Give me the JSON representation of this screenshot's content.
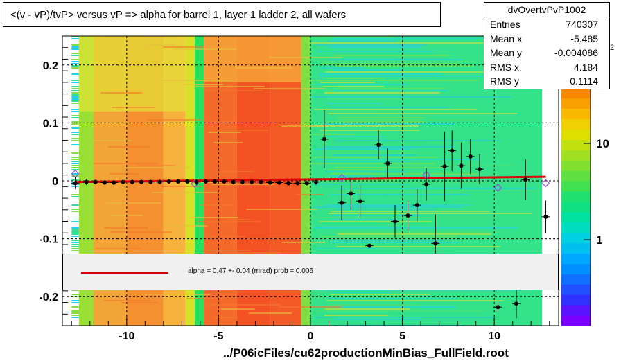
{
  "chart_data": {
    "type": "scatter",
    "title": "<(v - vP)/tvP> versus   vP => alpha for barrel 1, layer 1 ladder 2, all wafers",
    "xlabel": "../P06icFiles/cu62productionMinBias_FullField.root",
    "ylabel": "",
    "xlim": [
      -13.5,
      13.5
    ],
    "ylim": [
      -0.25,
      0.25
    ],
    "x_ticks": [
      -10,
      -5,
      0,
      5,
      10
    ],
    "y_ticks": [
      0.2,
      0.1,
      0,
      -0.1,
      -0.2
    ],
    "x_tick_labels": [
      "-10",
      "-5",
      "0",
      "5",
      "10"
    ],
    "y_tick_labels": [
      "0.2",
      "0.1",
      "0",
      "-0.1",
      "-0.2"
    ],
    "grid": true,
    "color_scale": {
      "type": "log",
      "tick_labels": [
        "1",
        "10"
      ],
      "exponent_label": "2"
    },
    "points": [
      {
        "x": -12.8,
        "y": -0.004,
        "err": 0.01
      },
      {
        "x": -12.2,
        "y": -0.002,
        "err": 0.005
      },
      {
        "x": -11.7,
        "y": -0.002,
        "err": 0.004
      },
      {
        "x": -11.2,
        "y": -0.003,
        "err": 0.004
      },
      {
        "x": -10.7,
        "y": -0.003,
        "err": 0.004
      },
      {
        "x": -10.2,
        "y": -0.002,
        "err": 0.004
      },
      {
        "x": -9.7,
        "y": -0.002,
        "err": 0.004
      },
      {
        "x": -9.2,
        "y": -0.002,
        "err": 0.004
      },
      {
        "x": -8.7,
        "y": -0.002,
        "err": 0.004
      },
      {
        "x": -8.2,
        "y": -0.002,
        "err": 0.004
      },
      {
        "x": -7.7,
        "y": -0.001,
        "err": 0.004
      },
      {
        "x": -7.2,
        "y": -0.001,
        "err": 0.004
      },
      {
        "x": -6.7,
        "y": -0.001,
        "err": 0.004
      },
      {
        "x": -6.2,
        "y": -0.002,
        "err": 0.005
      },
      {
        "x": -5.7,
        "y": -0.001,
        "err": 0.004
      },
      {
        "x": -5.2,
        "y": -0.001,
        "err": 0.004
      },
      {
        "x": -4.7,
        "y": -0.001,
        "err": 0.004
      },
      {
        "x": -4.2,
        "y": -0.002,
        "err": 0.004
      },
      {
        "x": -3.7,
        "y": -0.002,
        "err": 0.004
      },
      {
        "x": -3.2,
        "y": -0.002,
        "err": 0.004
      },
      {
        "x": -2.7,
        "y": -0.002,
        "err": 0.004
      },
      {
        "x": -2.2,
        "y": -0.003,
        "err": 0.004
      },
      {
        "x": -1.7,
        "y": -0.003,
        "err": 0.004
      },
      {
        "x": -1.2,
        "y": -0.004,
        "err": 0.004
      },
      {
        "x": -0.7,
        "y": -0.004,
        "err": 0.004
      },
      {
        "x": -0.2,
        "y": -0.004,
        "err": 0.004
      },
      {
        "x": 0.3,
        "y": -0.002,
        "err": 0.005
      },
      {
        "x": 0.75,
        "y": 0.072,
        "err": 0.05
      },
      {
        "x": 1.7,
        "y": -0.038,
        "err": 0.03
      },
      {
        "x": 2.2,
        "y": -0.022,
        "err": 0.028
      },
      {
        "x": 2.7,
        "y": -0.035,
        "err": 0.028
      },
      {
        "x": 3.2,
        "y": -0.112,
        "err": 0.004
      },
      {
        "x": 3.7,
        "y": 0.062,
        "err": 0.025
      },
      {
        "x": 4.2,
        "y": 0.03,
        "err": 0.026
      },
      {
        "x": 4.6,
        "y": -0.07,
        "err": 0.028
      },
      {
        "x": 5.3,
        "y": -0.06,
        "err": 0.026
      },
      {
        "x": 5.8,
        "y": -0.042,
        "err": 0.028
      },
      {
        "x": 6.3,
        "y": -0.006,
        "err": 0.028
      },
      {
        "x": 6.8,
        "y": -0.108,
        "err": 0.05
      },
      {
        "x": 7.3,
        "y": 0.025,
        "err": 0.06
      },
      {
        "x": 7.7,
        "y": 0.052,
        "err": 0.035
      },
      {
        "x": 8.2,
        "y": 0.026,
        "err": 0.04
      },
      {
        "x": 8.7,
        "y": 0.042,
        "err": 0.03
      },
      {
        "x": 9.2,
        "y": 0.02,
        "err": 0.026
      },
      {
        "x": 10.2,
        "y": -0.218,
        "err": 0.008
      },
      {
        "x": 11.2,
        "y": -0.212,
        "err": 0.025
      },
      {
        "x": 11.7,
        "y": 0.002,
        "err": 0.035
      },
      {
        "x": 12.8,
        "y": -0.062,
        "err": 0.028
      }
    ],
    "open_points": [
      {
        "x": -12.8,
        "y": 0.012
      },
      {
        "x": -6.3,
        "y": -0.005
      },
      {
        "x": 1.7,
        "y": 0.005
      },
      {
        "x": 6.3,
        "y": 0.01
      },
      {
        "x": 10.2,
        "y": -0.012
      },
      {
        "x": 12.8,
        "y": -0.004
      }
    ],
    "fit_line": {
      "x1": -12.8,
      "y1": -0.002,
      "x2": 12.8,
      "y2": 0.007
    }
  },
  "stats": {
    "name": "dvOvertvPvP1002",
    "rows": [
      {
        "key": "Entries",
        "value": "740307"
      },
      {
        "key": "Mean x",
        "value": "-5.485"
      },
      {
        "key": "Mean y",
        "value": "-0.004086"
      },
      {
        "key": "RMS x",
        "value": "4.184"
      },
      {
        "key": "RMS y",
        "value": "0.1114"
      }
    ]
  },
  "legend": {
    "text": "alpha =    0.47 +-  0.04 (mrad) prob = 0.006"
  },
  "colors": {
    "fit": "#e00000",
    "marker": "#000000",
    "open_marker": "#9a4adf"
  }
}
